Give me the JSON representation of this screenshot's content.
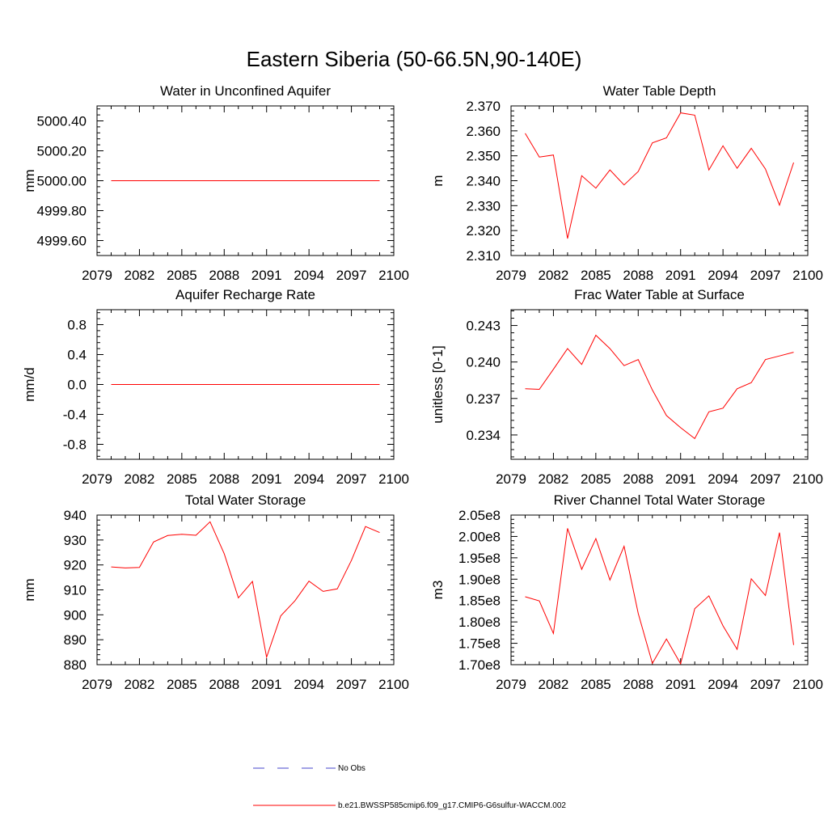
{
  "figure": {
    "title": "Eastern Siberia (50-66.5N,90-140E)"
  },
  "legend": {
    "entries": [
      {
        "label": "No Obs",
        "color": "#4444cc",
        "dashed": true
      },
      {
        "label": "b.e21.BWSSP585cmip6.f09_g17.CMIP6-G6sulfur-WACCM.002",
        "color": "#ff0000",
        "dashed": false
      }
    ]
  },
  "colors": {
    "series": "#ff0000",
    "obs": "#4444cc",
    "axis": "#000000"
  },
  "chart_data": [
    {
      "type": "line",
      "title": "Water in Unconfined Aquifer",
      "ylabel": "mm",
      "xlim": [
        2079,
        2100
      ],
      "ylim": [
        4999.5,
        5000.5
      ],
      "xticks": [
        "2079",
        "2082",
        "2085",
        "2088",
        "2091",
        "2094",
        "2097",
        "2100"
      ],
      "yticks": [
        4999.6,
        4999.8,
        5000.0,
        5000.2,
        5000.4
      ],
      "ytick_labels": [
        "4999.60",
        "4999.80",
        "5000.00",
        "5000.20",
        "5000.40"
      ],
      "x": [
        2080,
        2081,
        2082,
        2083,
        2084,
        2085,
        2086,
        2087,
        2088,
        2089,
        2090,
        2091,
        2092,
        2093,
        2094,
        2095,
        2096,
        2097,
        2098,
        2099
      ],
      "series": [
        {
          "values": [
            5000.0,
            5000.0,
            5000.0,
            5000.0,
            5000.0,
            5000.0,
            5000.0,
            5000.0,
            5000.0,
            5000.0,
            5000.0,
            5000.0,
            5000.0,
            5000.0,
            5000.0,
            5000.0,
            5000.0,
            5000.0,
            5000.0,
            5000.0
          ]
        }
      ]
    },
    {
      "type": "line",
      "title": "Water Table Depth",
      "ylabel": "m",
      "xlim": [
        2079,
        2100
      ],
      "ylim": [
        2.31,
        2.37
      ],
      "xticks": [
        "2079",
        "2082",
        "2085",
        "2088",
        "2091",
        "2094",
        "2097",
        "2100"
      ],
      "yticks": [
        2.31,
        2.32,
        2.33,
        2.34,
        2.35,
        2.36,
        2.37
      ],
      "ytick_labels": [
        "2.310",
        "2.320",
        "2.330",
        "2.340",
        "2.350",
        "2.360",
        "2.370"
      ],
      "x": [
        2080,
        2081,
        2082,
        2083,
        2084,
        2085,
        2086,
        2087,
        2088,
        2089,
        2090,
        2091,
        2092,
        2093,
        2094,
        2095,
        2096,
        2097,
        2098,
        2099
      ],
      "series": [
        {
          "values": [
            2.359,
            2.3495,
            2.3503,
            2.3168,
            2.342,
            2.337,
            2.3443,
            2.3383,
            2.3437,
            2.3552,
            2.3572,
            2.3672,
            2.3663,
            2.3443,
            2.354,
            2.345,
            2.353,
            2.3447,
            2.3302,
            2.3473
          ]
        }
      ]
    },
    {
      "type": "line",
      "title": "Aquifer Recharge Rate",
      "ylabel": "mm/d",
      "xlim": [
        2079,
        2100
      ],
      "ylim": [
        -1.0,
        1.0
      ],
      "xticks": [
        "2079",
        "2082",
        "2085",
        "2088",
        "2091",
        "2094",
        "2097",
        "2100"
      ],
      "yticks": [
        -0.8,
        -0.4,
        0.0,
        0.4,
        0.8
      ],
      "ytick_labels": [
        "-0.8",
        "-0.4",
        "0.0",
        "0.4",
        "0.8"
      ],
      "x": [
        2080,
        2081,
        2082,
        2083,
        2084,
        2085,
        2086,
        2087,
        2088,
        2089,
        2090,
        2091,
        2092,
        2093,
        2094,
        2095,
        2096,
        2097,
        2098,
        2099
      ],
      "series": [
        {
          "values": [
            0,
            0,
            0,
            0,
            0,
            0,
            0,
            0,
            0,
            0,
            0,
            0,
            0,
            0,
            0,
            0,
            0,
            0,
            0,
            0
          ]
        }
      ]
    },
    {
      "type": "line",
      "title": "Frac Water Table at Surface",
      "ylabel": "unitless [0-1]",
      "xlim": [
        2079,
        2100
      ],
      "ylim": [
        0.232,
        0.2443
      ],
      "xticks": [
        "2079",
        "2082",
        "2085",
        "2088",
        "2091",
        "2094",
        "2097",
        "2100"
      ],
      "yticks": [
        0.234,
        0.237,
        0.24,
        0.243
      ],
      "ytick_labels": [
        "0.234",
        "0.237",
        "0.240",
        "0.243"
      ],
      "x": [
        2080,
        2081,
        2082,
        2083,
        2084,
        2085,
        2086,
        2087,
        2088,
        2089,
        2090,
        2091,
        2092,
        2093,
        2094,
        2095,
        2096,
        2097,
        2098,
        2099
      ],
      "series": [
        {
          "values": [
            0.2378,
            0.23775,
            0.2394,
            0.2411,
            0.2398,
            0.2422,
            0.2411,
            0.2397,
            0.2402,
            0.2377,
            0.2356,
            0.2346,
            0.2337,
            0.2359,
            0.2362,
            0.2378,
            0.2383,
            0.2402,
            0.2405,
            0.2408
          ]
        }
      ]
    },
    {
      "type": "line",
      "title": "Total Water Storage",
      "ylabel": "mm",
      "xlim": [
        2079,
        2100
      ],
      "ylim": [
        880,
        940
      ],
      "xticks": [
        "2079",
        "2082",
        "2085",
        "2088",
        "2091",
        "2094",
        "2097",
        "2100"
      ],
      "yticks": [
        880,
        890,
        900,
        910,
        920,
        930,
        940
      ],
      "ytick_labels": [
        "880",
        "890",
        "900",
        "910",
        "920",
        "930",
        "940"
      ],
      "x": [
        2080,
        2081,
        2082,
        2083,
        2084,
        2085,
        2086,
        2087,
        2088,
        2089,
        2090,
        2091,
        2092,
        2093,
        2094,
        2095,
        2096,
        2097,
        2098,
        2099
      ],
      "series": [
        {
          "values": [
            919.2,
            918.8,
            919.0,
            929.2,
            931.8,
            932.3,
            931.9,
            937.3,
            924.5,
            906.8,
            913.4,
            883.0,
            899.6,
            905.6,
            913.5,
            909.4,
            910.4,
            921.8,
            935.4,
            933.0
          ]
        }
      ]
    },
    {
      "type": "line",
      "title": "River Channel Total Water Storage",
      "ylabel": "m3",
      "xlim": [
        2079,
        2100
      ],
      "ylim": [
        170000000,
        205000000
      ],
      "xticks": [
        "2079",
        "2082",
        "2085",
        "2088",
        "2091",
        "2094",
        "2097",
        "2100"
      ],
      "yticks": [
        170000000,
        175000000,
        180000000,
        185000000,
        190000000,
        195000000,
        200000000,
        205000000
      ],
      "ytick_labels": [
        "1.70e8",
        "1.75e8",
        "1.80e8",
        "1.85e8",
        "1.90e8",
        "1.95e8",
        "2.00e8",
        "2.05e8"
      ],
      "x": [
        2080,
        2081,
        2082,
        2083,
        2084,
        2085,
        2086,
        2087,
        2088,
        2089,
        2090,
        2091,
        2092,
        2093,
        2094,
        2095,
        2096,
        2097,
        2098,
        2099
      ],
      "series": [
        {
          "values": [
            185900000,
            184900000,
            177300000,
            201900000,
            192300000,
            199500000,
            189800000,
            197700000,
            182000000,
            170300000,
            176000000,
            170200000,
            183100000,
            186100000,
            179100000,
            173600000,
            190100000,
            186200000,
            200900000,
            174600000
          ]
        }
      ]
    }
  ]
}
